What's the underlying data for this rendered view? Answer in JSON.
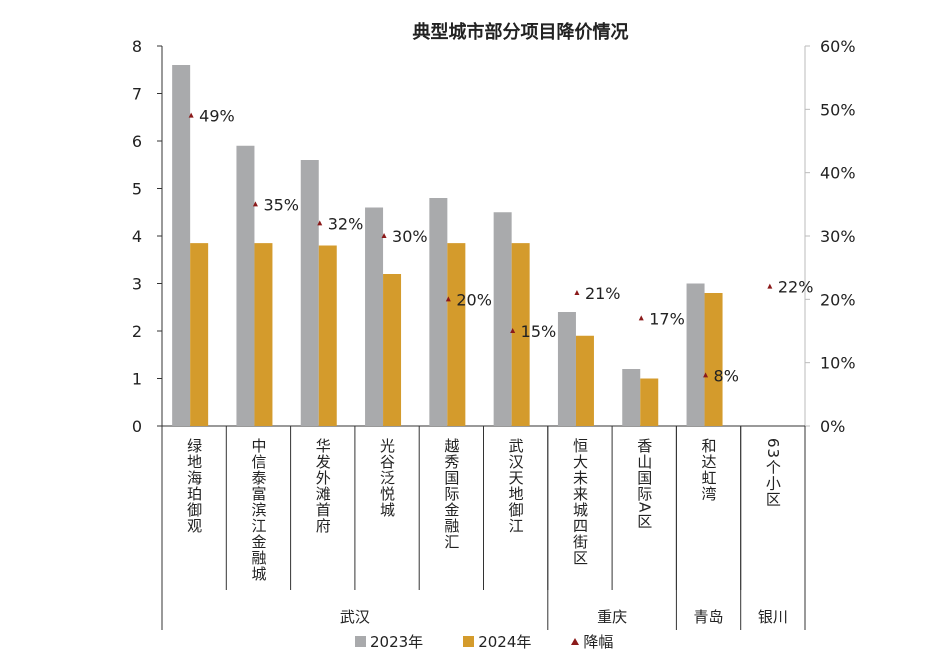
{
  "chart_data": {
    "type": "bar",
    "title": "典型城市部分项目降价情况",
    "categories": [
      "绿地海珀御观",
      "中信泰富滨江金融城",
      "华发外滩首府",
      "光谷泛悦城",
      "越秀国际金融汇",
      "武汉天地御江",
      "恒大未来城四街区",
      "香山国际A区",
      "和达虹湾",
      "63个小区"
    ],
    "groups": [
      {
        "name": "武汉",
        "count": 6
      },
      {
        "name": "重庆",
        "count": 2
      },
      {
        "name": "青岛",
        "count": 1
      },
      {
        "name": "银川",
        "count": 1
      }
    ],
    "series": [
      {
        "name": "2023年",
        "type": "bar",
        "axis": "left",
        "color": "#a9aaac",
        "values": [
          7.6,
          5.9,
          5.6,
          4.6,
          4.8,
          4.5,
          2.4,
          1.2,
          3.0,
          null
        ]
      },
      {
        "name": "2024年",
        "type": "bar",
        "axis": "left",
        "color": "#d49b2c",
        "values": [
          3.85,
          3.85,
          3.8,
          3.2,
          3.85,
          3.85,
          1.9,
          1.0,
          2.8,
          null
        ]
      },
      {
        "name": "降幅",
        "type": "marker",
        "axis": "right",
        "color": "#8b1a1a",
        "values": [
          49,
          35,
          32,
          30,
          20,
          15,
          21,
          17,
          8,
          22
        ],
        "labels": [
          "49%",
          "35%",
          "32%",
          "30%",
          "20%",
          "15%",
          "21%",
          "17%",
          "8%",
          "22%"
        ]
      }
    ],
    "y_left": {
      "range": [
        0,
        8
      ],
      "ticks": [
        "0",
        "1",
        "2",
        "3",
        "4",
        "5",
        "6",
        "7",
        "8"
      ]
    },
    "y_right": {
      "range": [
        0,
        60
      ],
      "ticks": [
        "0%",
        "10%",
        "20%",
        "30%",
        "40%",
        "50%",
        "60%"
      ]
    },
    "grid": false,
    "legend": "bottom"
  }
}
